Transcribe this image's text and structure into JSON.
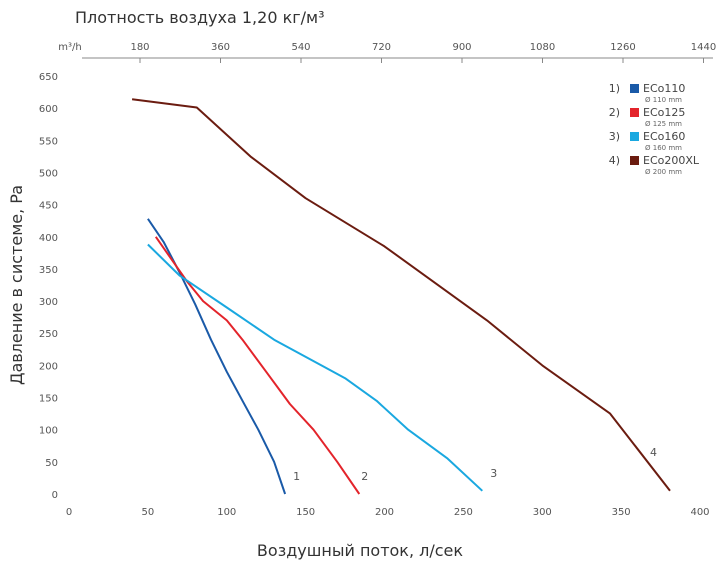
{
  "chart_data": {
    "type": "line",
    "title": "Плотность воздуха 1,20 кг/м³",
    "xlabel": "Воздушный поток, л/сек",
    "ylabel": "Давление в системе, Pa",
    "xlim": [
      0,
      400
    ],
    "ylim": [
      0,
      650
    ],
    "x_ticks": [
      0,
      50,
      100,
      150,
      200,
      250,
      300,
      350,
      400
    ],
    "y_ticks": [
      0,
      50,
      100,
      150,
      200,
      250,
      300,
      350,
      400,
      450,
      500,
      550,
      600,
      650
    ],
    "top_axis": {
      "unit_label": "m³/h",
      "ticks": [
        180,
        360,
        540,
        720,
        900,
        1080,
        1260,
        1440
      ]
    },
    "grid": false,
    "legend_position": "top-right",
    "series": [
      {
        "name": "ECo110",
        "legend_index": "1)",
        "diameter": "Ø 110 mm",
        "curve_label": "1",
        "color": "#1a5aa8",
        "points": [
          [
            50,
            428
          ],
          [
            60,
            392
          ],
          [
            70,
            345
          ],
          [
            80,
            295
          ],
          [
            90,
            240
          ],
          [
            100,
            190
          ],
          [
            110,
            145
          ],
          [
            120,
            100
          ],
          [
            130,
            50
          ],
          [
            137,
            0
          ]
        ]
      },
      {
        "name": "ECo125",
        "legend_index": "2)",
        "diameter": "Ø 125 mm",
        "curve_label": "2",
        "color": "#e3242b",
        "points": [
          [
            55,
            400
          ],
          [
            65,
            365
          ],
          [
            75,
            330
          ],
          [
            85,
            300
          ],
          [
            100,
            270
          ],
          [
            110,
            240
          ],
          [
            125,
            190
          ],
          [
            140,
            140
          ],
          [
            155,
            100
          ],
          [
            170,
            50
          ],
          [
            184,
            0
          ]
        ]
      },
      {
        "name": "ECo160",
        "legend_index": "3)",
        "diameter": "Ø 160 mm",
        "curve_label": "3",
        "color": "#1aa8e0",
        "points": [
          [
            50,
            388
          ],
          [
            70,
            340
          ],
          [
            100,
            290
          ],
          [
            130,
            240
          ],
          [
            160,
            200
          ],
          [
            175,
            180
          ],
          [
            195,
            145
          ],
          [
            215,
            100
          ],
          [
            240,
            55
          ],
          [
            262,
            5
          ]
        ]
      },
      {
        "name": "ECo200XL",
        "legend_index": "4)",
        "diameter": "Ø 200 mm",
        "curve_label": "4",
        "color": "#6b1c10",
        "points": [
          [
            40,
            614
          ],
          [
            81,
            601
          ],
          [
            115,
            525
          ],
          [
            150,
            460
          ],
          [
            200,
            385
          ],
          [
            265,
            270
          ],
          [
            300,
            200
          ],
          [
            343,
            125
          ],
          [
            381,
            5
          ]
        ]
      }
    ]
  }
}
